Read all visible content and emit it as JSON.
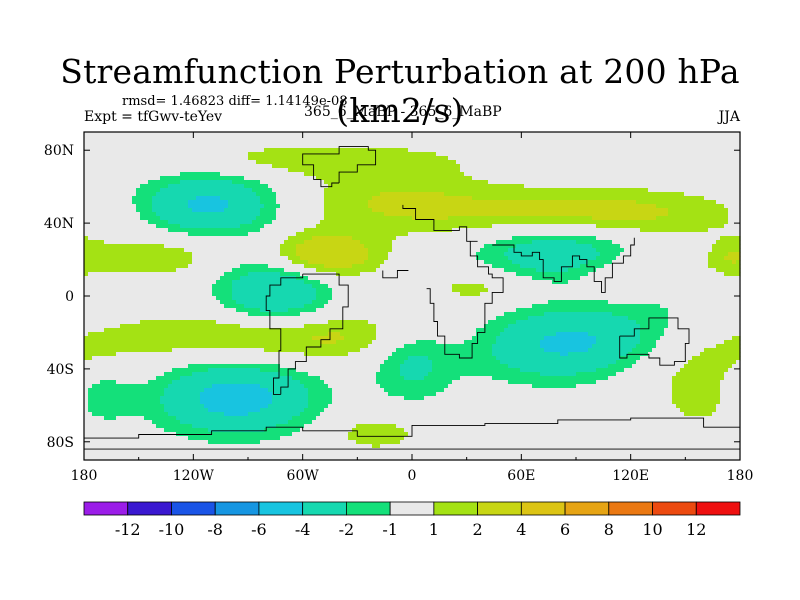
{
  "header": {
    "title": "Streamfunction Perturbation at 200 hPa (km2/s)",
    "rmsd_text": "rmsd= 1.46823 diff= 1.14149e-08",
    "experiment": "Expt = tfGwv-teYev",
    "comparison": "365_6_MaBP - 365_6_MaBP",
    "season": "JJA"
  },
  "chart_data": {
    "type": "heatmap",
    "map_type": "filled contour of streamfunction perturbation on a lat-lon grid with coastline overlay",
    "title": "Streamfunction Perturbation at 200 hPa (km2/s)",
    "x_range": [
      -180,
      180
    ],
    "y_range": [
      -90,
      90
    ],
    "x_ticks": [
      {
        "value": -180,
        "label": "180"
      },
      {
        "value": -120,
        "label": "120W"
      },
      {
        "value": -60,
        "label": "60W"
      },
      {
        "value": 0,
        "label": "0"
      },
      {
        "value": 60,
        "label": "60E"
      },
      {
        "value": 120,
        "label": "120E"
      },
      {
        "value": 180,
        "label": "180"
      }
    ],
    "y_ticks": [
      {
        "value": 80,
        "label": "80N"
      },
      {
        "value": 40,
        "label": "40N"
      },
      {
        "value": 0,
        "label": "0"
      },
      {
        "value": -40,
        "label": "40S"
      },
      {
        "value": -80,
        "label": "80S"
      }
    ],
    "colorbar": {
      "colors": [
        "#9b1de8",
        "#3a18d0",
        "#1a54e6",
        "#1696e2",
        "#18c4e0",
        "#16d8b0",
        "#14e07a",
        "#e9e9e9",
        "#a4e214",
        "#c8d614",
        "#dcc414",
        "#e6a414",
        "#ea7812",
        "#ec4a10",
        "#ee1010"
      ],
      "labels": [
        "-12",
        "-10",
        "-8",
        "-6",
        "-4",
        "-2",
        "-1",
        "1",
        "2",
        "4",
        "6",
        "8",
        "10",
        "12"
      ]
    },
    "levels": [
      -12,
      -10,
      -8,
      -6,
      -4,
      -2,
      -1,
      1,
      2,
      4,
      6,
      8,
      10,
      12
    ],
    "features": [
      {
        "lon": -112,
        "lat": 50,
        "value": -4.5,
        "slon": 26,
        "slat": 12
      },
      {
        "lon": -75,
        "lat": 3,
        "value": -4.2,
        "slon": 22,
        "slat": 14
      },
      {
        "lon": -97,
        "lat": -56,
        "value": -5.0,
        "slon": 30,
        "slat": 14
      },
      {
        "lon": 80,
        "lat": 23,
        "value": -3.6,
        "slon": 32,
        "slat": 13
      },
      {
        "lon": 90,
        "lat": -27,
        "value": -5.2,
        "slon": 38,
        "slat": 14
      },
      {
        "lon": 0,
        "lat": -35,
        "value": -2.5,
        "slon": 16,
        "slat": 16
      },
      {
        "lon": 145,
        "lat": 5,
        "value": -1.4,
        "slon": 18,
        "slat": 10
      },
      {
        "lon": -172,
        "lat": -55,
        "value": -2.0,
        "slon": 12,
        "slat": 10
      },
      {
        "lon": -50,
        "lat": 75,
        "value": 1.6,
        "slon": 60,
        "slat": 7
      },
      {
        "lon": -140,
        "lat": 22,
        "value": 1.8,
        "slon": 30,
        "slat": 9
      },
      {
        "lon": -50,
        "lat": 22,
        "value": 4.0,
        "slon": 22,
        "slat": 9
      },
      {
        "lon": -70,
        "lat": -22,
        "value": 2.7,
        "slon": 65,
        "slat": 10
      },
      {
        "lon": -10,
        "lat": 52,
        "value": 1.9,
        "slon": 38,
        "slat": 12
      },
      {
        "lon": 95,
        "lat": 45,
        "value": 3.0,
        "slon": 55,
        "slat": 10
      },
      {
        "lon": 130,
        "lat": 11,
        "value": 2.2,
        "slon": 30,
        "slat": 9
      },
      {
        "lon": 40,
        "lat": 5,
        "value": 1.8,
        "slon": 25,
        "slat": 8
      },
      {
        "lon": 140,
        "lat": -35,
        "value": 2.0,
        "slon": 40,
        "slat": 12
      },
      {
        "lon": 160,
        "lat": -57,
        "value": 1.6,
        "slon": 15,
        "slat": 10
      },
      {
        "lon": -20,
        "lat": -75,
        "value": 1.6,
        "slon": 20,
        "slat": 8
      },
      {
        "lon": 175,
        "lat": 22,
        "value": 1.3,
        "slon": 8,
        "slat": 6
      },
      {
        "lon": -2,
        "lat": 16,
        "value": -1.3,
        "slon": 3,
        "slat": 3
      }
    ],
    "coastline_segments": [
      [
        [
          -5,
          50
        ],
        [
          -5,
          48
        ],
        [
          2,
          48
        ],
        [
          2,
          42
        ],
        [
          10,
          42
        ],
        [
          12,
          36
        ],
        [
          20,
          36
        ],
        [
          26,
          38
        ],
        [
          30,
          30
        ],
        [
          36,
          30
        ]
      ],
      [
        [
          -60,
          12
        ],
        [
          -50,
          12
        ],
        [
          -40,
          6
        ],
        [
          -35,
          -6
        ],
        [
          -38,
          -18
        ],
        [
          -45,
          -24
        ],
        [
          -50,
          -28
        ],
        [
          -58,
          -36
        ],
        [
          -64,
          -40
        ],
        [
          -68,
          -50
        ],
        [
          -72,
          -54
        ]
      ],
      [
        [
          -72,
          -54
        ],
        [
          -76,
          -45
        ],
        [
          -73,
          -30
        ],
        [
          -72,
          -18
        ],
        [
          -78,
          -8
        ],
        [
          -80,
          0
        ],
        [
          -78,
          6
        ],
        [
          -72,
          10
        ],
        [
          -60,
          12
        ]
      ],
      [
        [
          -2,
          14
        ],
        [
          -8,
          10
        ],
        [
          -14,
          10
        ],
        [
          -16,
          14
        ]
      ],
      [
        [
          8,
          4
        ],
        [
          10,
          -4
        ],
        [
          12,
          -14
        ],
        [
          14,
          -22
        ],
        [
          18,
          -32
        ],
        [
          26,
          -34
        ],
        [
          33,
          -26
        ],
        [
          36,
          -20
        ],
        [
          40,
          -12
        ],
        [
          40,
          -4
        ],
        [
          44,
          2
        ],
        [
          50,
          10
        ],
        [
          44,
          12
        ],
        [
          42,
          16
        ],
        [
          36,
          22
        ],
        [
          32,
          30
        ]
      ],
      [
        [
          44,
          28
        ],
        [
          50,
          28
        ],
        [
          56,
          24
        ],
        [
          60,
          22
        ],
        [
          66,
          24
        ],
        [
          70,
          20
        ],
        [
          72,
          10
        ],
        [
          78,
          8
        ],
        [
          82,
          16
        ],
        [
          88,
          22
        ],
        [
          92,
          20
        ],
        [
          96,
          16
        ],
        [
          100,
          8
        ],
        [
          104,
          2
        ],
        [
          106,
          10
        ],
        [
          110,
          18
        ],
        [
          116,
          22
        ],
        [
          120,
          28
        ],
        [
          122,
          32
        ]
      ],
      [
        [
          114,
          -22
        ],
        [
          122,
          -18
        ],
        [
          130,
          -12
        ],
        [
          136,
          -12
        ],
        [
          142,
          -12
        ],
        [
          146,
          -18
        ],
        [
          152,
          -26
        ],
        [
          150,
          -36
        ],
        [
          144,
          -38
        ],
        [
          136,
          -34
        ],
        [
          130,
          -32
        ],
        [
          118,
          -34
        ],
        [
          114,
          -28
        ],
        [
          114,
          -22
        ]
      ],
      [
        [
          -180,
          -78
        ],
        [
          -150,
          -76
        ],
        [
          -110,
          -74
        ],
        [
          -80,
          -72
        ],
        [
          -60,
          -74
        ],
        [
          -30,
          -77
        ],
        [
          0,
          -71
        ],
        [
          40,
          -70
        ],
        [
          80,
          -68
        ],
        [
          120,
          -67
        ],
        [
          160,
          -72
        ],
        [
          180,
          -78
        ]
      ],
      [
        [
          -180,
          -84
        ],
        [
          -120,
          -84
        ],
        [
          -60,
          -84
        ],
        [
          0,
          -84
        ],
        [
          60,
          -84
        ],
        [
          120,
          -84
        ],
        [
          180,
          -84
        ]
      ],
      [
        [
          -40,
          62
        ],
        [
          -44,
          60
        ],
        [
          -50,
          64
        ],
        [
          -54,
          72
        ],
        [
          -60,
          78
        ],
        [
          -40,
          82
        ],
        [
          -24,
          80
        ],
        [
          -20,
          72
        ],
        [
          -30,
          68
        ],
        [
          -40,
          62
        ]
      ]
    ]
  }
}
